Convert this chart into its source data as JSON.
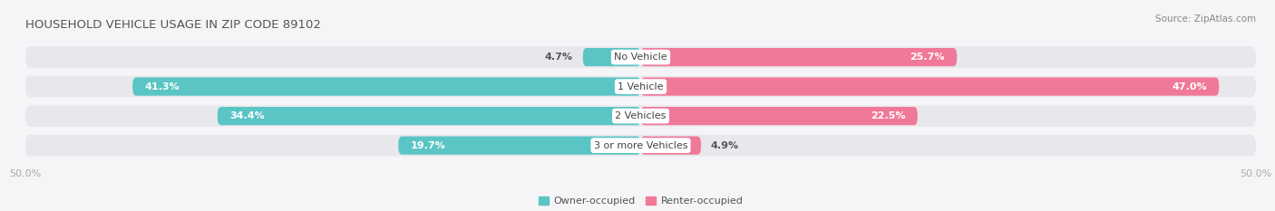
{
  "title": "HOUSEHOLD VEHICLE USAGE IN ZIP CODE 89102",
  "source": "Source: ZipAtlas.com",
  "categories": [
    "No Vehicle",
    "1 Vehicle",
    "2 Vehicles",
    "3 or more Vehicles"
  ],
  "owner_values": [
    4.7,
    41.3,
    34.4,
    19.7
  ],
  "renter_values": [
    25.7,
    47.0,
    22.5,
    4.9
  ],
  "owner_color": "#5bc4c4",
  "renter_color": "#f07898",
  "bar_bg_color": "#e8e8ec",
  "owner_label": "Owner-occupied",
  "renter_label": "Renter-occupied",
  "x_min": -50.0,
  "x_max": 50.0,
  "x_tick_labels": [
    "50.0%",
    "50.0%"
  ],
  "title_fontsize": 9.5,
  "source_fontsize": 7.5,
  "label_fontsize": 8,
  "category_fontsize": 8,
  "tick_fontsize": 8,
  "bar_height": 0.62,
  "background_color": "#f5f5f8",
  "text_dark": "#555555",
  "text_light": "white"
}
